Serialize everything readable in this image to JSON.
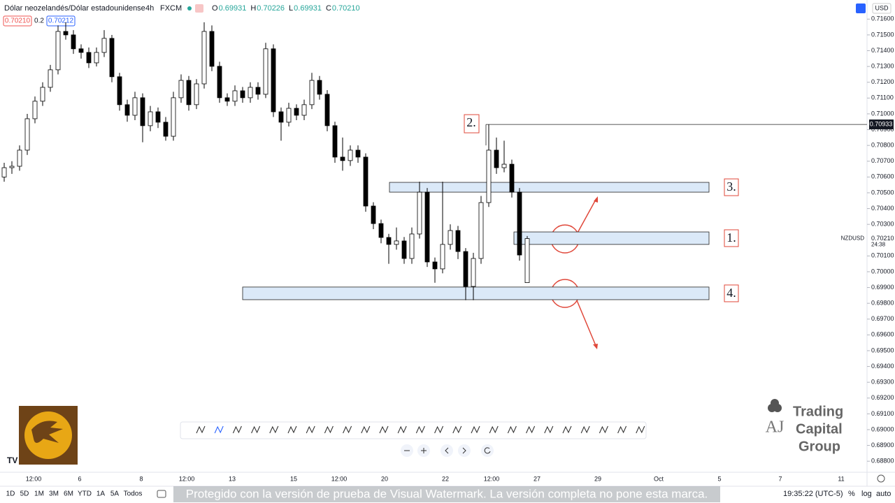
{
  "header": {
    "symbol": "Dólar neozelandés/Dólar estadounidense",
    "interval": "4h",
    "exchange": "FXCM",
    "ohlc": [
      {
        "key": "O",
        "value": "0.69931"
      },
      {
        "key": "H",
        "value": "0.70226"
      },
      {
        "key": "L",
        "value": "0.69931"
      },
      {
        "key": "C",
        "value": "0.70210"
      }
    ],
    "sell": "0.70210",
    "spread": "0.2",
    "buy": "0.70212",
    "currency": "USD"
  },
  "chart_data": {
    "type": "candlestick",
    "ylim": [
      0.6873,
      0.71721
    ],
    "yticks": [
      {
        "value": 0.716,
        "label": "0.71600"
      },
      {
        "value": 0.715,
        "label": "0.71500"
      },
      {
        "value": 0.714,
        "label": "0.71400"
      },
      {
        "value": 0.713,
        "label": "0.71300"
      },
      {
        "value": 0.712,
        "label": "0.71200"
      },
      {
        "value": 0.711,
        "label": "0.71100"
      },
      {
        "value": 0.71,
        "label": "0.71000"
      },
      {
        "value": 0.709,
        "label": "0.70900"
      },
      {
        "value": 0.708,
        "label": "0.70800"
      },
      {
        "value": 0.707,
        "label": "0.70700"
      },
      {
        "value": 0.706,
        "label": "0.70600"
      },
      {
        "value": 0.705,
        "label": "0.70500"
      },
      {
        "value": 0.704,
        "label": "0.70400"
      },
      {
        "value": 0.703,
        "label": "0.70300"
      },
      {
        "value": 0.701,
        "label": "0.70100"
      },
      {
        "value": 0.7,
        "label": "0.70000"
      },
      {
        "value": 0.699,
        "label": "0.69900"
      },
      {
        "value": 0.698,
        "label": "0.69800"
      },
      {
        "value": 0.697,
        "label": "0.69700"
      },
      {
        "value": 0.696,
        "label": "0.69600"
      },
      {
        "value": 0.695,
        "label": "0.69500"
      },
      {
        "value": 0.694,
        "label": "0.69400"
      },
      {
        "value": 0.693,
        "label": "0.69300"
      },
      {
        "value": 0.692,
        "label": "0.69200"
      },
      {
        "value": 0.691,
        "label": "0.69100"
      },
      {
        "value": 0.69,
        "label": "0.69000"
      },
      {
        "value": 0.689,
        "label": "0.68900"
      },
      {
        "value": 0.688,
        "label": "0.68800"
      }
    ],
    "x_axis_labels": [
      "12:00",
      "6",
      "8",
      "12:00",
      "13",
      "15",
      "12:00",
      "20",
      "22",
      "12:00",
      "27",
      "29",
      "Oct",
      "5",
      "7",
      "11"
    ],
    "candles": [
      [
        0.706,
        0.7069,
        0.7057,
        0.70659
      ],
      [
        0.70659,
        0.707,
        0.7062,
        0.70668
      ],
      [
        0.70668,
        0.708,
        0.7064,
        0.7077
      ],
      [
        0.7077,
        0.71,
        0.7074,
        0.70969
      ],
      [
        0.70969,
        0.7111,
        0.7094,
        0.7108
      ],
      [
        0.7108,
        0.712,
        0.7105,
        0.71168
      ],
      [
        0.71168,
        0.7131,
        0.7114,
        0.71279
      ],
      [
        0.71279,
        0.7156,
        0.7125,
        0.71522
      ],
      [
        0.71522,
        0.7158,
        0.7147,
        0.715
      ],
      [
        0.715,
        0.7153,
        0.7138,
        0.71412
      ],
      [
        0.71412,
        0.7144,
        0.7135,
        0.71389
      ],
      [
        0.71389,
        0.7142,
        0.7129,
        0.71323
      ],
      [
        0.71323,
        0.7142,
        0.713,
        0.71389
      ],
      [
        0.71389,
        0.7153,
        0.7136,
        0.71478
      ],
      [
        0.71478,
        0.715,
        0.712,
        0.71235
      ],
      [
        0.71235,
        0.7126,
        0.7102,
        0.71058
      ],
      [
        0.71058,
        0.7109,
        0.7095,
        0.70991
      ],
      [
        0.70991,
        0.7114,
        0.7096,
        0.71102
      ],
      [
        0.71102,
        0.7113,
        0.7082,
        0.70925
      ],
      [
        0.70925,
        0.7105,
        0.7089,
        0.71013
      ],
      [
        0.71013,
        0.7104,
        0.7091,
        0.70947
      ],
      [
        0.70947,
        0.7098,
        0.7083,
        0.70858
      ],
      [
        0.70858,
        0.7114,
        0.7083,
        0.71102
      ],
      [
        0.71102,
        0.7125,
        0.7107,
        0.71212
      ],
      [
        0.71212,
        0.7124,
        0.7102,
        0.71058
      ],
      [
        0.71058,
        0.7122,
        0.7103,
        0.7119
      ],
      [
        0.7119,
        0.7158,
        0.7116,
        0.71522
      ],
      [
        0.71522,
        0.7156,
        0.7127,
        0.71301
      ],
      [
        0.71301,
        0.7133,
        0.7107,
        0.71102
      ],
      [
        0.71102,
        0.7113,
        0.7105,
        0.7108
      ],
      [
        0.7108,
        0.7118,
        0.7105,
        0.71146
      ],
      [
        0.71146,
        0.7117,
        0.7107,
        0.71102
      ],
      [
        0.71102,
        0.712,
        0.7107,
        0.71168
      ],
      [
        0.71168,
        0.712,
        0.7109,
        0.71124
      ],
      [
        0.71124,
        0.7145,
        0.711,
        0.71412
      ],
      [
        0.71412,
        0.7144,
        0.7098,
        0.71013
      ],
      [
        0.71013,
        0.7104,
        0.7083,
        0.70947
      ],
      [
        0.70947,
        0.7107,
        0.7092,
        0.71035
      ],
      [
        0.71035,
        0.7106,
        0.7096,
        0.70991
      ],
      [
        0.70991,
        0.7109,
        0.7096,
        0.71058
      ],
      [
        0.71058,
        0.7126,
        0.7103,
        0.71212
      ],
      [
        0.71212,
        0.7124,
        0.7109,
        0.71124
      ],
      [
        0.71124,
        0.7115,
        0.7089,
        0.70925
      ],
      [
        0.70925,
        0.7095,
        0.7069,
        0.70726
      ],
      [
        0.70726,
        0.7085,
        0.7064,
        0.70704
      ],
      [
        0.70704,
        0.708,
        0.7067,
        0.7077
      ],
      [
        0.7077,
        0.708,
        0.7069,
        0.70726
      ],
      [
        0.70726,
        0.7075,
        0.7038,
        0.70416
      ],
      [
        0.70416,
        0.7044,
        0.7027,
        0.70305
      ],
      [
        0.70305,
        0.7033,
        0.7018,
        0.70217
      ],
      [
        0.70217,
        0.7024,
        0.7005,
        0.70173
      ],
      [
        0.70173,
        0.7028,
        0.7014,
        0.70195
      ],
      [
        0.70195,
        0.7022,
        0.7005,
        0.70084
      ],
      [
        0.70084,
        0.7028,
        0.7005,
        0.70239
      ],
      [
        0.70239,
        0.7057,
        0.7021,
        0.70504
      ],
      [
        0.70504,
        0.7053,
        0.7003,
        0.70062
      ],
      [
        0.70062,
        0.7009,
        0.6993,
        0.70018
      ],
      [
        0.70018,
        0.7057,
        0.6999,
        0.70173
      ],
      [
        0.70173,
        0.703,
        0.7014,
        0.70261
      ],
      [
        0.70261,
        0.7029,
        0.7008,
        0.70128
      ],
      [
        0.70128,
        0.7015,
        0.6982,
        0.69907
      ],
      [
        0.69907,
        0.7012,
        0.6982,
        0.70084
      ],
      [
        0.70084,
        0.7048,
        0.7005,
        0.70438
      ],
      [
        0.70438,
        0.70933,
        0.7041,
        0.7077
      ],
      [
        0.7077,
        0.7085,
        0.7062,
        0.70659
      ],
      [
        0.70659,
        0.7083,
        0.7063,
        0.70681
      ],
      [
        0.70681,
        0.7071,
        0.7047,
        0.70504
      ],
      [
        0.70504,
        0.7053,
        0.7007,
        0.70106
      ],
      [
        0.69931,
        0.70226,
        0.69931,
        0.7021
      ]
    ],
    "zones": [
      {
        "label": "3.",
        "top": 0.70566,
        "bottom": 0.70504
      },
      {
        "label": "1.",
        "top": 0.70252,
        "bottom": 0.70173
      },
      {
        "label": "4.",
        "top": 0.69903,
        "bottom": 0.69823
      }
    ],
    "high_label": "2.",
    "price_line": {
      "value": 0.70933,
      "label": "0.70933"
    },
    "last_price": {
      "value": 0.7021,
      "label": "0.70210",
      "symbol": "NZDUSD",
      "countdown": "24:38"
    }
  },
  "bottom_bar": {
    "ranges": [
      "1D",
      "5D",
      "1M",
      "3M",
      "6M",
      "YTD",
      "1A",
      "5A",
      "Todos"
    ],
    "clock": "19:35:22 (UTC-5)",
    "percent": "%",
    "log": "log",
    "auto": "auto"
  },
  "watermark": "Protegido con la versión de prueba de Visual Watermark. La versión completa no pone esta marca.",
  "logo": {
    "lines": [
      "Trading",
      "Capital",
      "Group"
    ]
  }
}
